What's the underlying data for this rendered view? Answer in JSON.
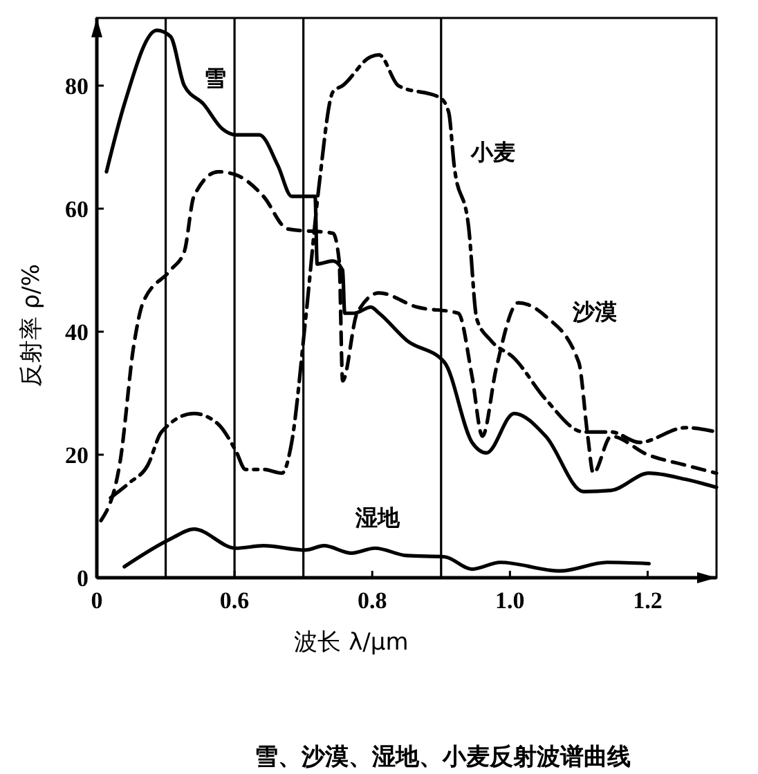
{
  "chart_data": {
    "type": "line",
    "title": "雪、沙漠、湿地、小麦反射波谱曲线",
    "xlabel": "波长 λ/μm",
    "ylabel": "反射率 ρ/%",
    "xlim": [
      0.4,
      1.3
    ],
    "xticks": [
      {
        "value": 0.4,
        "label": "0"
      },
      0.6,
      0.8,
      {
        "value": 1,
        "label": "1.0"
      },
      1.2
    ],
    "ylim": [
      0,
      91
    ],
    "yticks": [
      0,
      20,
      40,
      60,
      80
    ],
    "grid": false,
    "marker": "none",
    "ref_lines": [
      {
        "axis": "x",
        "value": 0.5,
        "color": "#000000"
      },
      {
        "axis": "x",
        "value": 0.6,
        "color": "#000000"
      },
      {
        "axis": "x",
        "value": 0.7,
        "color": "#000000"
      },
      {
        "axis": "x",
        "value": 0.9,
        "color": "#000000"
      }
    ],
    "series": [
      {
        "name": "雪",
        "color": "#000000",
        "line_style": "solid",
        "x": [
          0.414,
          0.44,
          0.487,
          0.507,
          0.527,
          0.555,
          0.582,
          0.602,
          0.636,
          0.663,
          0.683,
          0.717,
          0.72,
          0.743,
          0.757,
          0.76,
          0.774,
          0.798,
          0.81,
          0.85,
          0.905,
          0.945,
          0.966,
          1.006,
          1.052,
          1.107,
          1.147,
          1.202,
          1.255,
          1.3
        ],
        "values": [
          66,
          77,
          89,
          88,
          80,
          77,
          73,
          72,
          72,
          67,
          62,
          62,
          51,
          51.5,
          50,
          43,
          43,
          44,
          43,
          38.6,
          35,
          22,
          20.3,
          26.7,
          23,
          14,
          14.2,
          17,
          16,
          14.7
        ]
      },
      {
        "name": "小麦",
        "color": "#000000",
        "line_style": "dashdot",
        "x": [
          0.42,
          0.447,
          0.474,
          0.494,
          0.541,
          0.576,
          0.602,
          0.616,
          0.642,
          0.669,
          0.683,
          0.703,
          0.723,
          0.743,
          0.757,
          0.798,
          0.81,
          0.838,
          0.899,
          0.911,
          0.919,
          0.94,
          0.952,
          0.972,
          1.006,
          1.052,
          1.107,
          1.147,
          1.188,
          1.255,
          1.3
        ],
        "values": [
          13,
          15.4,
          18.3,
          23.7,
          26.7,
          25,
          20.6,
          17.6,
          17.6,
          17,
          22,
          41.8,
          64,
          79,
          80,
          84.7,
          85,
          80,
          78,
          75.7,
          67,
          57,
          42,
          38.6,
          35.7,
          29,
          23.7,
          23.7,
          22,
          24.4,
          23.7
        ]
      },
      {
        "name": "沙漠",
        "color": "#000000",
        "line_style": "dashed",
        "x": [
          0.406,
          0.434,
          0.454,
          0.467,
          0.507,
          0.527,
          0.541,
          0.576,
          0.602,
          0.642,
          0.677,
          0.743,
          0.752,
          0.757,
          0.778,
          0.81,
          0.865,
          0.925,
          0.945,
          0.96,
          0.98,
          1.012,
          1.052,
          1.1,
          1.113,
          1.121,
          1.147,
          1.2,
          1.255,
          1.3
        ],
        "values": [
          9.3,
          19,
          38,
          44.7,
          50,
          53,
          62,
          66,
          65.5,
          62,
          56.7,
          56,
          51.5,
          32,
          43,
          46.3,
          44,
          43,
          32.7,
          23,
          34,
          44.7,
          42.5,
          35,
          23,
          17,
          23,
          20,
          18.3,
          17
        ]
      },
      {
        "name": "湿地",
        "color": "#000000",
        "line_style": "solid",
        "x": [
          0.44,
          0.507,
          0.541,
          0.602,
          0.642,
          0.703,
          0.73,
          0.77,
          0.804,
          0.85,
          0.905,
          0.945,
          0.986,
          1.073,
          1.141,
          1.202
        ],
        "values": [
          1.8,
          6.3,
          7.9,
          4.8,
          5.2,
          4.5,
          5.2,
          4,
          4.8,
          3.6,
          3.4,
          1.4,
          2.5,
          1.1,
          2.5,
          2.3
        ]
      }
    ]
  }
}
